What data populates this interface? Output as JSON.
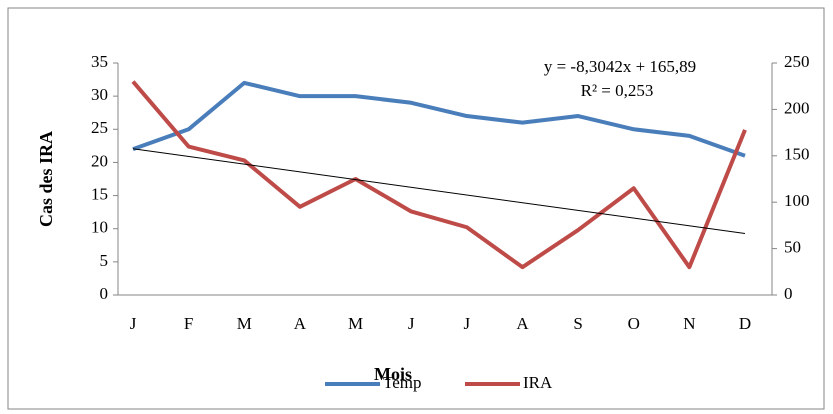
{
  "chart_data": {
    "type": "line",
    "y_label": "Cas  des IRA",
    "x_label": "Mois",
    "categories": [
      "J",
      "F",
      "M",
      "A",
      "M",
      "J",
      "J",
      "A",
      "S",
      "O",
      "N",
      "D"
    ],
    "series": [
      {
        "name": "Temp",
        "color": "#4a7ebb",
        "values": [
          22,
          25,
          32,
          30,
          30,
          29,
          27,
          26,
          27,
          25,
          24,
          21
        ]
      },
      {
        "name": "IRA",
        "color": "#be4b48",
        "axis": "y2",
        "values": [
          230,
          160,
          145,
          95,
          125,
          90,
          73,
          30,
          70,
          115,
          30,
          178
        ]
      }
    ],
    "ylim": [
      0,
      35
    ],
    "yticks": [
      0,
      5,
      10,
      15,
      20,
      25,
      30,
      35
    ],
    "y2lim": [
      0,
      250
    ],
    "y2ticks": [
      0,
      50,
      100,
      150,
      200,
      250
    ],
    "trendline": {
      "slope": -8.3042,
      "intercept": 165.89,
      "axis": "y2",
      "color": "#000000"
    },
    "annotations": [
      "y = -8,3042x + 165,89",
      "R² = 0,253"
    ],
    "legend": "bottom"
  }
}
